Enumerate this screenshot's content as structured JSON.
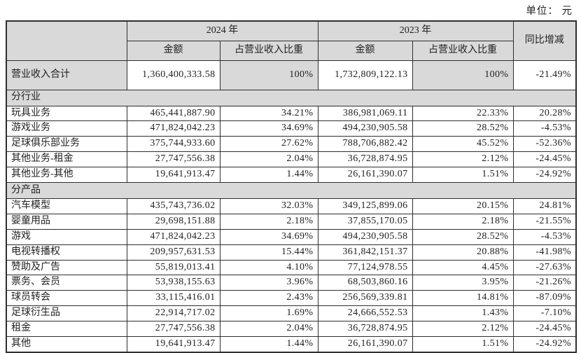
{
  "unit_label": "单位： 元",
  "table": {
    "header": {
      "year_2024": "2024 年",
      "year_2023": "2023 年",
      "amount": "金额",
      "ratio": "占营业收入比重",
      "yoy": "同比增减"
    },
    "total_row": {
      "label": "营业收入合计",
      "amount_2024": "1,360,400,333.58",
      "ratio_2024": "100%",
      "amount_2023": "1,732,809,122.13",
      "ratio_2023": "100%",
      "yoy": "-21.49%"
    },
    "sections": [
      {
        "title": "分行业",
        "rows": [
          {
            "label": "玩具业务",
            "amount_2024": "465,441,887.90",
            "ratio_2024": "34.21%",
            "amount_2023": "386,981,069.11",
            "ratio_2023": "22.33%",
            "yoy": "20.28%"
          },
          {
            "label": "游戏业务",
            "amount_2024": "471,824,042.23",
            "ratio_2024": "34.69%",
            "amount_2023": "494,230,905.58",
            "ratio_2023": "28.52%",
            "yoy": "-4.53%"
          },
          {
            "label": "足球俱乐部业务",
            "amount_2024": "375,744,933.60",
            "ratio_2024": "27.62%",
            "amount_2023": "788,706,882.42",
            "ratio_2023": "45.52%",
            "yoy": "-52.36%"
          },
          {
            "label": "其他业务-租金",
            "amount_2024": "27,747,556.38",
            "ratio_2024": "2.04%",
            "amount_2023": "36,728,874.95",
            "ratio_2023": "2.12%",
            "yoy": "-24.45%"
          },
          {
            "label": "其他业务-其他",
            "amount_2024": "19,641,913.47",
            "ratio_2024": "1.44%",
            "amount_2023": "26,161,390.07",
            "ratio_2023": "1.51%",
            "yoy": "-24.92%"
          }
        ]
      },
      {
        "title": "分产品",
        "rows": [
          {
            "label": "汽车模型",
            "amount_2024": "435,743,736.02",
            "ratio_2024": "32.03%",
            "amount_2023": "349,125,899.06",
            "ratio_2023": "20.15%",
            "yoy": "24.81%"
          },
          {
            "label": "婴童用品",
            "amount_2024": "29,698,151.88",
            "ratio_2024": "2.18%",
            "amount_2023": "37,855,170.05",
            "ratio_2023": "2.18%",
            "yoy": "-21.55%"
          },
          {
            "label": "游戏",
            "amount_2024": "471,824,042.23",
            "ratio_2024": "34.69%",
            "amount_2023": "494,230,905.58",
            "ratio_2023": "28.52%",
            "yoy": "-4.53%"
          },
          {
            "label": "电视转播权",
            "amount_2024": "209,957,631.53",
            "ratio_2024": "15.44%",
            "amount_2023": "361,842,151.37",
            "ratio_2023": "20.88%",
            "yoy": "-41.98%"
          },
          {
            "label": "赞助及广告",
            "amount_2024": "55,819,013.41",
            "ratio_2024": "4.10%",
            "amount_2023": "77,124,978.55",
            "ratio_2023": "4.45%",
            "yoy": "-27.63%"
          },
          {
            "label": "票务、会员",
            "amount_2024": "53,938,155.63",
            "ratio_2024": "3.96%",
            "amount_2023": "68,503,860.16",
            "ratio_2023": "3.95%",
            "yoy": "-21.26%"
          },
          {
            "label": "球员转会",
            "amount_2024": "33,115,416.01",
            "ratio_2024": "2.43%",
            "amount_2023": "256,569,339.81",
            "ratio_2023": "14.81%",
            "yoy": "-87.09%"
          },
          {
            "label": "足球衍生品",
            "amount_2024": "22,914,717.02",
            "ratio_2024": "1.69%",
            "amount_2023": "24,666,552.53",
            "ratio_2023": "1.43%",
            "yoy": "-7.10%"
          },
          {
            "label": "租金",
            "amount_2024": "27,747,556.38",
            "ratio_2024": "2.04%",
            "amount_2023": "36,728,874.95",
            "ratio_2023": "2.12%",
            "yoy": "-24.45%"
          },
          {
            "label": "其他",
            "amount_2024": "19,641,913.47",
            "ratio_2024": "1.44%",
            "amount_2023": "26,161,390.07",
            "ratio_2023": "1.51%",
            "yoy": "-24.92%"
          }
        ]
      }
    ]
  }
}
